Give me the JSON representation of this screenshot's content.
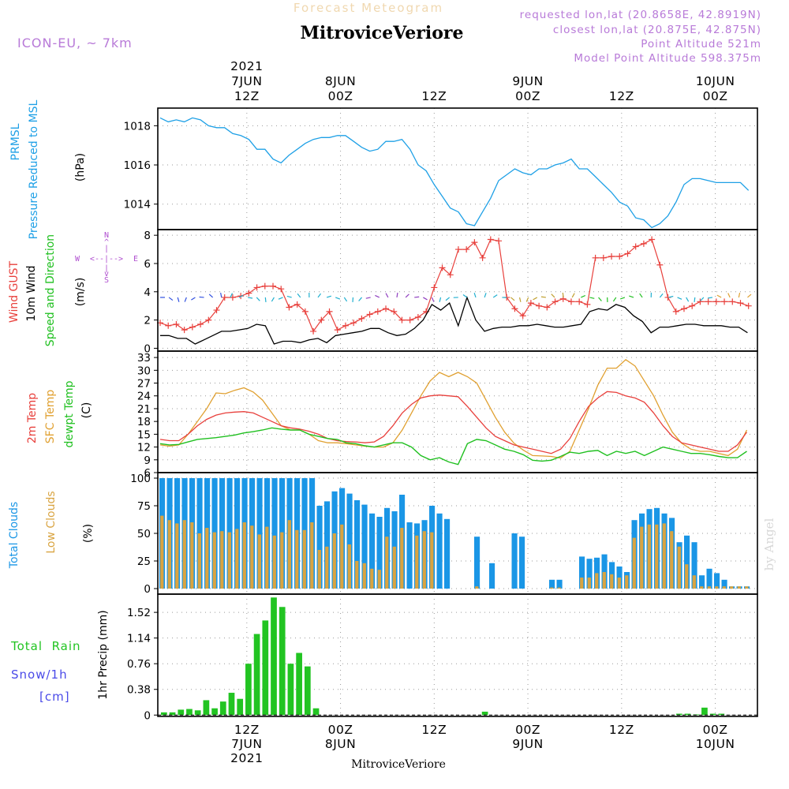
{
  "header": {
    "title": "Forecast Meteogram",
    "station": "MitroviceVeriore",
    "model": "ICON-EU, ~ 7km",
    "requested": "requested lon,lat (20.8658E, 42.8919N)",
    "closest": "closest lon,lat (20.875E, 42.875N)",
    "point_altitude": "Point Altitude 521m",
    "model_altitude": "Model Point Altitude 598.375m",
    "footer_station": "MitroviceVeriore",
    "watermark": "by Angel"
  },
  "time_axis": {
    "start_hour": 0,
    "end_hour": 64,
    "top_labels": [
      {
        "hour": 9.5,
        "lines": [
          "2021",
          "7JUN",
          "12Z"
        ]
      },
      {
        "hour": 19.5,
        "lines": [
          "8JUN",
          "00Z"
        ]
      },
      {
        "hour": 29.5,
        "lines": [
          "12Z"
        ]
      },
      {
        "hour": 39.5,
        "lines": [
          "9JUN",
          "00Z"
        ]
      },
      {
        "hour": 49.5,
        "lines": [
          "12Z"
        ]
      },
      {
        "hour": 59.5,
        "lines": [
          "10JUN",
          "00Z"
        ]
      }
    ],
    "bottom_labels": [
      {
        "hour": 9.5,
        "lines": [
          "12Z",
          "7JUN",
          "2021"
        ]
      },
      {
        "hour": 19.5,
        "lines": [
          "00Z",
          "8JUN"
        ]
      },
      {
        "hour": 29.5,
        "lines": [
          "12Z"
        ]
      },
      {
        "hour": 39.5,
        "lines": [
          "00Z",
          "9JUN"
        ]
      },
      {
        "hour": 49.5,
        "lines": [
          "12Z"
        ]
      },
      {
        "hour": 59.5,
        "lines": [
          "00Z",
          "10JUN"
        ]
      }
    ]
  },
  "colors": {
    "pressure": "#1ea0e6",
    "gust": "#e8403c",
    "wind": "#000000",
    "sfc_temp": "#e0a030",
    "t2m": "#e8403c",
    "dewpt": "#20c020",
    "total_clouds": "#1a96e6",
    "low_clouds": "#d9a441",
    "rain": "#22c422",
    "snow": "#4a4ae8",
    "model": "#b87ad8",
    "label_dir": "#b050d0",
    "grid": "#9a9a9a"
  },
  "chart_data": [
    {
      "type": "line",
      "title": "PRMSL Pressure Reduced to MSL",
      "ylabel": "(hPa)",
      "side_labels": [
        "PRMSL",
        "Pressure Reduced to MSL"
      ],
      "ylim": [
        1012.7,
        1018.9
      ],
      "yticks": [
        1014,
        1016,
        1018
      ],
      "series": [
        {
          "name": "PRMSL",
          "values": [
            1018.4,
            1018.2,
            1018.3,
            1018.2,
            1018.4,
            1018.3,
            1018.0,
            1017.9,
            1017.9,
            1017.6,
            1017.5,
            1017.3,
            1016.8,
            1016.8,
            1016.3,
            1016.1,
            1016.5,
            1016.8,
            1017.1,
            1017.3,
            1017.4,
            1017.4,
            1017.5,
            1017.5,
            1017.2,
            1016.9,
            1016.7,
            1016.8,
            1017.2,
            1017.2,
            1017.3,
            1016.8,
            1016.0,
            1015.7,
            1015.0,
            1014.4,
            1013.8,
            1013.6,
            1013.0,
            1012.9,
            1013.6,
            1014.3,
            1015.2,
            1015.5,
            1015.8,
            1015.6,
            1015.5,
            1015.8,
            1015.8,
            1016.0,
            1016.1,
            1016.3,
            1015.8,
            1015.8,
            1015.4,
            1015.0,
            1014.6,
            1014.1,
            1013.9,
            1013.3,
            1013.2,
            1012.8,
            1013.0,
            1013.4,
            1014.1,
            1015.0,
            1015.3,
            1015.3,
            1015.2,
            1015.1,
            1015.1,
            1015.1,
            1015.1,
            1014.7
          ]
        }
      ]
    },
    {
      "type": "line",
      "title": "Wind GUST / 10m Wind Speed and Direction",
      "ylabel": "(m/s)",
      "side_labels": [
        "Wind GUST",
        "10m Wind",
        "Speed and Direction"
      ],
      "compass": [
        "N",
        "S",
        "W",
        "E"
      ],
      "ylim": [
        -0.2,
        8.4
      ],
      "yticks": [
        0,
        2,
        4,
        6,
        8
      ],
      "series": [
        {
          "name": "Wind GUST",
          "values": [
            1.8,
            1.6,
            1.7,
            1.3,
            1.5,
            1.7,
            2.0,
            2.7,
            3.6,
            3.6,
            3.7,
            3.9,
            4.3,
            4.4,
            4.4,
            4.2,
            2.9,
            3.1,
            2.6,
            1.2,
            2.0,
            2.6,
            1.3,
            1.6,
            1.8,
            2.1,
            2.4,
            2.6,
            2.8,
            2.6,
            2.0,
            2.0,
            2.2,
            2.6,
            4.3,
            5.7,
            5.2,
            7.0,
            7.0,
            7.5,
            6.4,
            7.7,
            7.6,
            3.6,
            2.8,
            2.3,
            3.2,
            3.0,
            2.9,
            3.3,
            3.5,
            3.3,
            3.3,
            3.1,
            6.4,
            6.4,
            6.5,
            6.5,
            6.7,
            7.2,
            7.4,
            7.7,
            5.9,
            3.6,
            2.6,
            2.8,
            3.0,
            3.3,
            3.3,
            3.3,
            3.3,
            3.3,
            3.2,
            3.0
          ]
        },
        {
          "name": "10m Wind",
          "values": [
            0.9,
            0.9,
            0.7,
            0.7,
            0.3,
            0.6,
            0.9,
            1.2,
            1.2,
            1.3,
            1.4,
            1.7,
            1.6,
            0.3,
            0.5,
            0.5,
            0.4,
            0.6,
            0.7,
            0.4,
            0.9,
            1.0,
            1.1,
            1.2,
            1.4,
            1.4,
            1.1,
            0.9,
            1.0,
            1.4,
            2.0,
            3.1,
            2.7,
            3.2,
            1.6,
            3.6,
            2.0,
            1.2,
            1.4,
            1.5,
            1.5,
            1.6,
            1.6,
            1.7,
            1.6,
            1.5,
            1.5,
            1.6,
            1.7,
            2.6,
            2.8,
            2.7,
            3.1,
            2.9,
            2.3,
            1.9,
            1.1,
            1.5,
            1.5,
            1.6,
            1.7,
            1.7,
            1.6,
            1.6,
            1.6,
            1.5,
            1.5,
            1.1
          ]
        }
      ]
    },
    {
      "type": "line",
      "title": "2m Temp / SFC Temp / dewpt Temp",
      "ylabel": "(C)",
      "side_labels": [
        "2m Temp",
        "SFC Temp",
        "dewpt Temp"
      ],
      "ylim": [
        6,
        34.5
      ],
      "yticks": [
        6,
        9,
        12,
        15,
        18,
        21,
        24,
        27,
        30,
        33
      ],
      "series": [
        {
          "name": "SFC Temp",
          "values": [
            12.5,
            12.2,
            12.5,
            15,
            18,
            21,
            24.7,
            24.5,
            25.3,
            25.9,
            24.9,
            23,
            20,
            17,
            16,
            16,
            15,
            13.5,
            13,
            13,
            12.8,
            12.5,
            12.2,
            12,
            12,
            13,
            16,
            20,
            24,
            27.5,
            29.5,
            28.5,
            29.5,
            28.5,
            27,
            23,
            19,
            15.5,
            12.9,
            11.3,
            10,
            9.9,
            9.8,
            9.4,
            11,
            16,
            21,
            26.5,
            30.5,
            30.5,
            32.5,
            31,
            27.5,
            24,
            19.5,
            15.5,
            12.9,
            11.5,
            11,
            11,
            10.5,
            10,
            11.5,
            16
          ]
        },
        {
          "name": "2m Temp",
          "values": [
            13.8,
            13.5,
            13.5,
            15,
            17,
            18.5,
            19.5,
            20,
            20.2,
            20.3,
            20,
            19,
            18,
            17,
            16.5,
            16.2,
            15.7,
            15,
            14,
            13.5,
            13.3,
            13.2,
            13,
            13.2,
            14.5,
            17,
            20,
            22,
            23.5,
            24,
            24.2,
            24,
            23.8,
            21.5,
            19,
            16.5,
            14.5,
            13.5,
            12.5,
            12,
            11.5,
            11,
            10.5,
            11.5,
            14,
            18,
            21.5,
            23.5,
            25,
            24.8,
            24,
            23.5,
            22.5,
            20,
            17,
            14.5,
            13,
            12.5,
            12,
            11.5,
            11,
            11,
            12.5,
            15.5
          ]
        },
        {
          "name": "dewpt Temp",
          "values": [
            12.8,
            12.5,
            12.6,
            13.2,
            13.8,
            14,
            14.2,
            14.5,
            14.8,
            15.3,
            15.6,
            16,
            16.5,
            16.2,
            16,
            16,
            15,
            14.5,
            14,
            13.8,
            13,
            12.8,
            12.3,
            12,
            12.5,
            13,
            13,
            12,
            10,
            9,
            9.5,
            8.5,
            7.9,
            12.8,
            13.8,
            13.5,
            12.5,
            11.5,
            11,
            10.2,
            8.9,
            8.7,
            8.9,
            9.8,
            10.8,
            10.5,
            11,
            11.2,
            10,
            11,
            10.5,
            11,
            10,
            11,
            12,
            11.5,
            11,
            10.5,
            10.5,
            10.2,
            9.8,
            9.5,
            9.5,
            11
          ]
        }
      ]
    },
    {
      "type": "bar",
      "title": "Total Clouds / Low Clouds",
      "ylabel": "(%)",
      "side_labels": [
        "Total Clouds",
        "Low Clouds"
      ],
      "ylim": [
        -5,
        105
      ],
      "yticks": [
        0,
        25,
        50,
        75,
        100
      ],
      "series": [
        {
          "name": "Total Clouds",
          "values": [
            100,
            100,
            100,
            100,
            100,
            100,
            100,
            100,
            100,
            100,
            100,
            100,
            100,
            100,
            100,
            100,
            100,
            100,
            100,
            100,
            100,
            75,
            79,
            88,
            91,
            86,
            80,
            76,
            68,
            65,
            73,
            70,
            85,
            60,
            59,
            62,
            75,
            68,
            63,
            0,
            0,
            0,
            47,
            0,
            23,
            0,
            0,
            50,
            47,
            0,
            0,
            0,
            8,
            8,
            0,
            0,
            29,
            27,
            28,
            31,
            24,
            20,
            15,
            62,
            68,
            72,
            73,
            68,
            64,
            42,
            48,
            42,
            12,
            18,
            14,
            8,
            2,
            2,
            2,
            0
          ]
        },
        {
          "name": "Low Clouds",
          "values": [
            66,
            62,
            59,
            62,
            60,
            50,
            55,
            51,
            52,
            51,
            54,
            60,
            57,
            49,
            56,
            48,
            51,
            62,
            53,
            53,
            60,
            35,
            38,
            50,
            58,
            40,
            25,
            23,
            18,
            17,
            47,
            38,
            55,
            0,
            48,
            52,
            51,
            0,
            0,
            0,
            0,
            0,
            2,
            0,
            0,
            0,
            0,
            0,
            0,
            0,
            0,
            0,
            1,
            1,
            0,
            0,
            10,
            10,
            14,
            15,
            13,
            10,
            12,
            46,
            56,
            58,
            58,
            59,
            52,
            38,
            22,
            12,
            2,
            2,
            2,
            2,
            2,
            2,
            2,
            0
          ]
        }
      ]
    },
    {
      "type": "bar",
      "title": "1hr Precip",
      "ylabel": "1hr Precip (mm)",
      "side_labels": [
        "Total  Rain",
        "Snow/1h",
        "[cm]"
      ],
      "ylim": [
        -0.02,
        1.79
      ],
      "yticks": [
        0,
        0.38,
        0.76,
        1.14,
        1.52
      ],
      "series": [
        {
          "name": "Rain",
          "values": [
            0.04,
            0.04,
            0.08,
            0.09,
            0.07,
            0.22,
            0.1,
            0.2,
            0.33,
            0.24,
            0.76,
            1.2,
            1.4,
            1.74,
            1.6,
            0.76,
            0.92,
            0.72,
            0.1,
            0,
            0,
            0,
            0,
            0,
            0,
            0,
            0,
            0,
            0,
            0,
            0,
            0,
            0,
            0,
            0,
            0,
            0,
            0,
            0.05,
            0,
            0,
            0,
            0,
            0,
            0,
            0,
            0,
            0,
            0,
            0,
            0,
            0,
            0,
            0,
            0,
            0,
            0,
            0,
            0,
            0,
            0,
            0.02,
            0.02,
            0.01,
            0.11,
            0.02,
            0.02,
            0,
            0,
            0,
            0
          ]
        }
      ]
    }
  ]
}
